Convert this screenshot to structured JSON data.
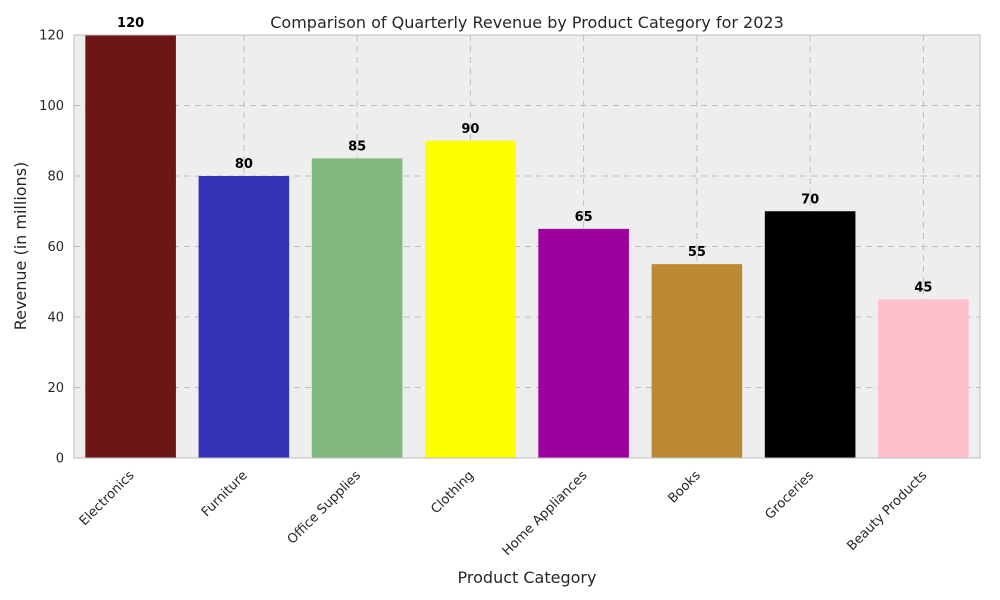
{
  "chart_data": {
    "type": "bar",
    "title": "Comparison of Quarterly Revenue by Product Category for 2023",
    "xlabel": "Product Category",
    "ylabel": "Revenue (in millions)",
    "categories": [
      "Electronics",
      "Furniture",
      "Office Supplies",
      "Clothing",
      "Home Appliances",
      "Books",
      "Groceries",
      "Beauty Products"
    ],
    "values": [
      120,
      80,
      85,
      90,
      65,
      55,
      70,
      45
    ],
    "colors": [
      "#6d1618",
      "#3434b9",
      "#80b880",
      "#ffff00",
      "#9e009e",
      "#bd8a33",
      "#000000",
      "#ffc0cb"
    ],
    "ylim": [
      0,
      120
    ],
    "yticks": [
      0,
      20,
      40,
      60,
      80,
      100,
      120
    ],
    "grid": true,
    "legend": "none",
    "data_labels": true,
    "plot_background": "#eeeeee",
    "grid_color": "#bfbfbf"
  }
}
